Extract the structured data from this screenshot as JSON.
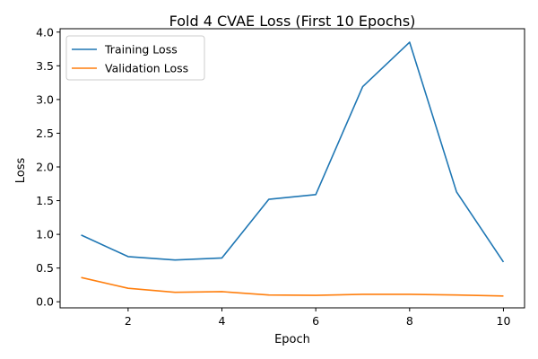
{
  "chart_data": {
    "type": "line",
    "title": "Fold 4 CVAE Loss (First 10 Epochs)",
    "xlabel": "Epoch",
    "ylabel": "Loss",
    "x": [
      1,
      2,
      3,
      4,
      5,
      6,
      7,
      8,
      9,
      10
    ],
    "xlim": [
      0.55,
      10.45
    ],
    "ylim": [
      -0.09,
      4.05
    ],
    "xticks": [
      2,
      4,
      6,
      8,
      10
    ],
    "xtick_labels": [
      "2",
      "4",
      "6",
      "8",
      "10"
    ],
    "yticks": [
      0.0,
      0.5,
      1.0,
      1.5,
      2.0,
      2.5,
      3.0,
      3.5,
      4.0
    ],
    "ytick_labels": [
      "0.0",
      "0.5",
      "1.0",
      "1.5",
      "2.0",
      "2.5",
      "3.0",
      "3.5",
      "4.0"
    ],
    "grid": false,
    "legend_position": "top-left",
    "series": [
      {
        "name": "Training Loss",
        "color": "#1f77b4",
        "values": [
          0.99,
          0.67,
          0.62,
          0.65,
          1.52,
          1.59,
          3.19,
          3.85,
          1.63,
          0.59
        ]
      },
      {
        "name": "Validation Loss",
        "color": "#ff7f0e",
        "values": [
          0.36,
          0.2,
          0.14,
          0.15,
          0.1,
          0.095,
          0.11,
          0.11,
          0.1,
          0.085
        ]
      }
    ]
  }
}
